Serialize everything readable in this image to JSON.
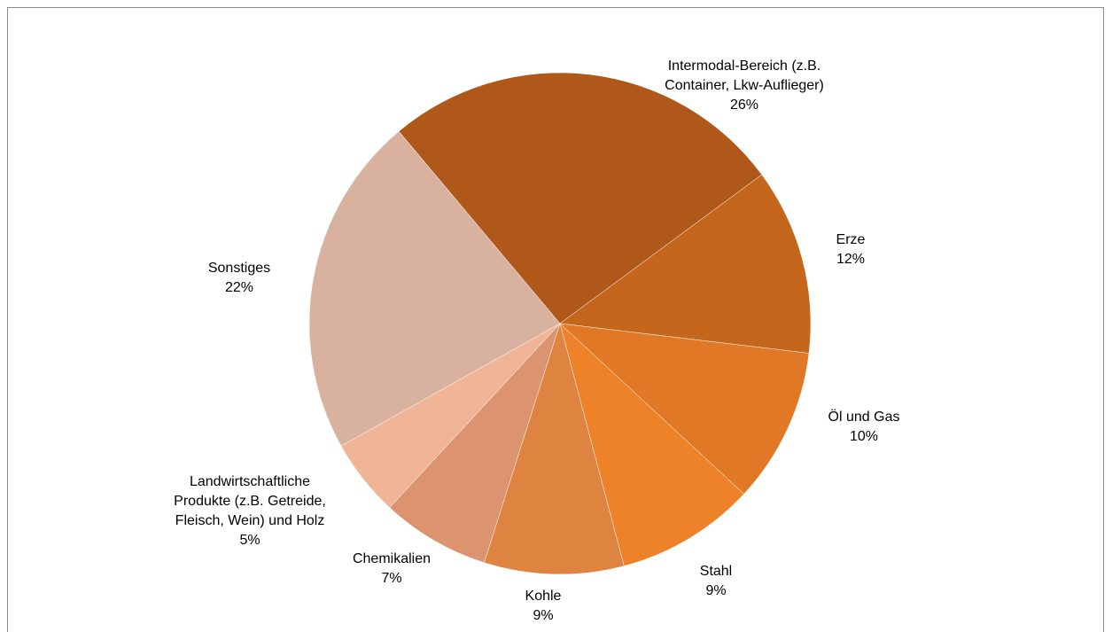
{
  "chart_data": {
    "type": "pie",
    "categories": [
      "Intermodal-Bereich (z.B. Container, Lkw-Auflieger)",
      "Erze",
      "Öl und Gas",
      "Stahl",
      "Kohle",
      "Chemikalien",
      "Landwirtschaftliche Produkte (z.B. Getreide, Fleisch, Wein) und Holz",
      "Sonstiges"
    ],
    "values": [
      26,
      12,
      10,
      9,
      9,
      7,
      5,
      22
    ],
    "value_labels": [
      "26%",
      "12%",
      "10%",
      "9%",
      "9%",
      "7%",
      "5%",
      "22%"
    ],
    "colors": [
      "#b0581a",
      "#c4661c",
      "#e07825",
      "#ee8228",
      "#df8440",
      "#dc9470",
      "#f0b497",
      "#d8b29f"
    ]
  }
}
